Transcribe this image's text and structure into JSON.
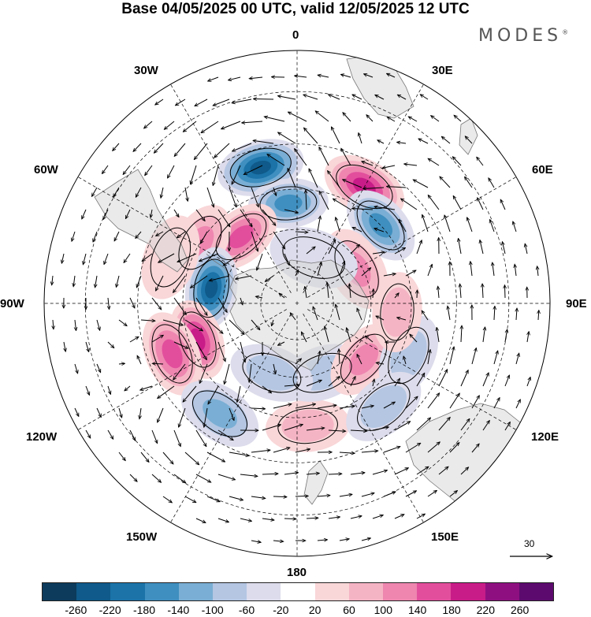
{
  "title": "Base 04/05/2025 00 UTC, valid 12/05/2025 12 UTC",
  "brand": "MODES",
  "brand_mark": "®",
  "projection": "south-polar-stereographic",
  "longitude_labels": {
    "top": "0",
    "top_right": "30E",
    "upper_right": "60E",
    "right": "90E",
    "lower_right": "120E",
    "bottom_right": "150E",
    "bottom": "180",
    "bottom_left": "150W",
    "lower_left": "120W",
    "left": "90W",
    "upper_left": "60W",
    "top_left": "30W"
  },
  "wind_reference": {
    "value": "30",
    "icon": "arrow-right-icon"
  },
  "colorbar": {
    "ticks": [
      "-260",
      "-220",
      "-180",
      "-140",
      "-100",
      "-60",
      "-20",
      "20",
      "60",
      "100",
      "140",
      "180",
      "220",
      "260"
    ],
    "colors": [
      "#0d3b5c",
      "#0f5a8a",
      "#1b73a8",
      "#3f8fc0",
      "#7aaed4",
      "#b4c6e2",
      "#dcdcec",
      "#ffffff",
      "#f9d6d8",
      "#f5b4c4",
      "#ee86b0",
      "#e24e9c",
      "#c81c88",
      "#8e1080",
      "#5c0a6e"
    ]
  },
  "anomalies": [
    {
      "lon": 345,
      "lat": -36,
      "value": -240
    },
    {
      "lon": 355,
      "lat": -50,
      "value": -160
    },
    {
      "lon": 30,
      "lat": -38,
      "value": 190
    },
    {
      "lon": 47,
      "lat": -45,
      "value": -160
    },
    {
      "lon": 60,
      "lat": -62,
      "value": 130
    },
    {
      "lon": 320,
      "lat": -55,
      "value": 150
    },
    {
      "lon": 302,
      "lat": -45,
      "value": 130
    },
    {
      "lon": 280,
      "lat": -55,
      "value": -220
    },
    {
      "lon": 250,
      "lat": -48,
      "value": 200
    },
    {
      "lon": 248,
      "lat": -38,
      "value": 140
    },
    {
      "lon": 215,
      "lat": -38,
      "value": -100
    },
    {
      "lon": 175,
      "lat": -42,
      "value": 60
    },
    {
      "lon": 160,
      "lat": -60,
      "value": -80
    },
    {
      "lon": 130,
      "lat": -55,
      "value": 110
    },
    {
      "lon": 115,
      "lat": -42,
      "value": -80
    },
    {
      "lon": 95,
      "lat": -50,
      "value": 70
    },
    {
      "lon": 140,
      "lat": -38,
      "value": -60
    },
    {
      "lon": 20,
      "lat": -70,
      "value": -50
    },
    {
      "lon": 200,
      "lat": -60,
      "value": -60
    },
    {
      "lon": 290,
      "lat": -38,
      "value": 50
    }
  ]
}
